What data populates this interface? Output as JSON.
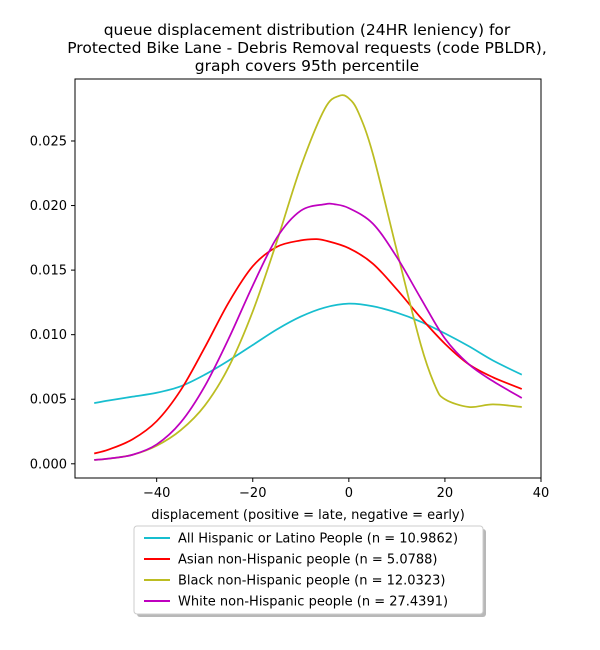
{
  "chart_data": {
    "type": "line",
    "title_lines": [
      "queue displacement distribution (24HR leniency) for",
      "Protected Bike Lane - Debris Removal  requests (code PBLDR),",
      "graph covers 95th percentile"
    ],
    "xlabel": "displacement (positive = late, negative = early)",
    "ylabel": "",
    "xlim": [
      -57,
      40
    ],
    "ylim": [
      -0.0011,
      0.0298
    ],
    "xticks": [
      -40,
      -20,
      0,
      20,
      40
    ],
    "xtick_labels": [
      "−40",
      "−20",
      "0",
      "20",
      "40"
    ],
    "yticks": [
      0.0,
      0.005,
      0.01,
      0.015,
      0.02,
      0.025
    ],
    "ytick_labels": [
      "0.000",
      "0.005",
      "0.010",
      "0.015",
      "0.020",
      "0.025"
    ],
    "grid": false,
    "legend_position": "below",
    "series": [
      {
        "name": "All Hispanic or Latino People (n = 10.9862)",
        "color": "#17becf",
        "x": [
          -53,
          -50,
          -45,
          -40,
          -35,
          -30,
          -25,
          -20,
          -15,
          -10,
          -5,
          0,
          5,
          10,
          15,
          20,
          25,
          30,
          36
        ],
        "y": [
          0.0047,
          0.0049,
          0.0052,
          0.0055,
          0.006,
          0.0069,
          0.008,
          0.0092,
          0.0104,
          0.0114,
          0.0121,
          0.0124,
          0.0122,
          0.0117,
          0.011,
          0.0101,
          0.0091,
          0.008,
          0.0069
        ]
      },
      {
        "name": "Asian non-Hispanic people (n = 5.0788)",
        "color": "#ff0000",
        "x": [
          -53,
          -50,
          -45,
          -40,
          -35,
          -30,
          -25,
          -20,
          -15,
          -10,
          -7,
          -5,
          0,
          5,
          10,
          15,
          20,
          25,
          30,
          36
        ],
        "y": [
          0.0008,
          0.0011,
          0.0019,
          0.0033,
          0.0057,
          0.009,
          0.0125,
          0.0153,
          0.0168,
          0.0173,
          0.0174,
          0.0173,
          0.0167,
          0.0155,
          0.0135,
          0.0113,
          0.0093,
          0.0077,
          0.0067,
          0.0058
        ]
      },
      {
        "name": "Black non-Hispanic people (n = 12.0323)",
        "color": "#bcbd22",
        "x": [
          -53,
          -50,
          -45,
          -40,
          -35,
          -30,
          -25,
          -20,
          -15,
          -10,
          -5,
          -2,
          0,
          2,
          5,
          10,
          15,
          18,
          20,
          25,
          30,
          36
        ],
        "y": [
          0.0003,
          0.0004,
          0.0007,
          0.0014,
          0.0026,
          0.0045,
          0.0075,
          0.0118,
          0.0172,
          0.023,
          0.0275,
          0.0285,
          0.0283,
          0.0272,
          0.024,
          0.0165,
          0.0092,
          0.006,
          0.005,
          0.0044,
          0.0046,
          0.0044
        ]
      },
      {
        "name": "White non-Hispanic people (n = 27.4391)",
        "color": "#bf00bf",
        "x": [
          -53,
          -50,
          -45,
          -40,
          -35,
          -30,
          -25,
          -20,
          -15,
          -10,
          -5,
          -3,
          0,
          5,
          10,
          15,
          20,
          25,
          30,
          36
        ],
        "y": [
          0.0003,
          0.0004,
          0.0007,
          0.0015,
          0.0032,
          0.006,
          0.0097,
          0.0138,
          0.0175,
          0.0196,
          0.0201,
          0.0201,
          0.0198,
          0.0186,
          0.016,
          0.0128,
          0.0097,
          0.0077,
          0.0064,
          0.0051
        ]
      }
    ]
  }
}
